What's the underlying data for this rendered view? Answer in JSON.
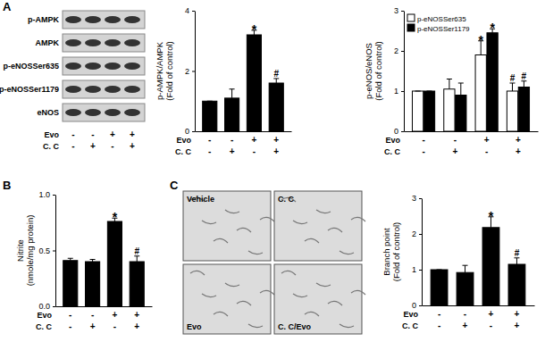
{
  "figure": {
    "panel_labels": [
      "A",
      "B",
      "C"
    ],
    "blot": {
      "labels": [
        "p-AMPK",
        "AMPK",
        "p-eNOSSer635",
        "p-eNOSSer1179",
        "eNOS"
      ],
      "treatments": [
        {
          "label": "Evo",
          "signs": [
            "-",
            "-",
            "+",
            "+"
          ]
        },
        {
          "label": "C. C",
          "signs": [
            "-",
            "+",
            "-",
            "+"
          ]
        }
      ]
    },
    "micrographs": {
      "labels": [
        "Vehicle",
        "C. C",
        "Evo",
        "C. C/Evo"
      ]
    }
  },
  "chart_data": [
    {
      "type": "bar",
      "ylabel": [
        "p-AMPK/AMPK",
        "(Fold of control)"
      ],
      "categories": [
        null,
        null,
        null,
        null
      ],
      "values": [
        1,
        1.1,
        3.2,
        1.6
      ],
      "errors": [
        0,
        0.3,
        0.15,
        0.15
      ],
      "annotations": [
        null,
        null,
        "*",
        "#"
      ],
      "color": "#000000",
      "ylim": [
        0,
        4
      ],
      "yticks": [
        0,
        2,
        4
      ],
      "treatments": [
        {
          "label": "Evo",
          "signs": [
            "-",
            "-",
            "+",
            "+"
          ]
        },
        {
          "label": "C. C",
          "signs": [
            "-",
            "+",
            "-",
            "+"
          ]
        }
      ]
    },
    {
      "type": "bar",
      "ylabel": [
        "p-eNOS/eNOS",
        "(Fold of control)"
      ],
      "categories": [
        null,
        null,
        null,
        null
      ],
      "series": [
        {
          "name": "p-eNOSSer635",
          "color": "#ffffff",
          "values": [
            1,
            1.05,
            1.9,
            1.0
          ],
          "errors": [
            0,
            0.25,
            0.35,
            0.2
          ],
          "annotations": [
            null,
            null,
            "*",
            "#"
          ]
        },
        {
          "name": "p-eNOSSer1179",
          "color": "#000000",
          "values": [
            1,
            0.9,
            2.45,
            1.1
          ],
          "errors": [
            0,
            0.3,
            0.1,
            0.15
          ],
          "annotations": [
            null,
            null,
            "*",
            "#"
          ]
        }
      ],
      "legend": "upper left",
      "ylim": [
        0,
        3
      ],
      "yticks": [
        0,
        1,
        2,
        3
      ],
      "treatments": [
        {
          "label": "Evo",
          "signs": [
            "-",
            "-",
            "+",
            "+"
          ]
        },
        {
          "label": "C. C",
          "signs": [
            "-",
            "+",
            "-",
            "+"
          ]
        }
      ]
    },
    {
      "type": "bar",
      "ylabel": [
        "Nitrite",
        "(nmole/mg protein)"
      ],
      "categories": [
        null,
        null,
        null,
        null
      ],
      "values": [
        0.41,
        0.4,
        0.76,
        0.4
      ],
      "errors": [
        0.02,
        0.02,
        0.03,
        0.05
      ],
      "annotations": [
        null,
        null,
        "*",
        "#"
      ],
      "color": "#000000",
      "ylim": [
        0,
        1.0
      ],
      "yticks": [
        {
          "value": 0,
          "label": "0.0"
        },
        {
          "value": 0.5,
          "label": "0.5"
        },
        {
          "value": 1.0,
          "label": "1.0"
        }
      ],
      "treatments": [
        {
          "label": "Evo",
          "signs": [
            "-",
            "-",
            "+",
            "+"
          ]
        },
        {
          "label": "C. C",
          "signs": [
            "-",
            "+",
            "-",
            "+"
          ]
        }
      ]
    },
    {
      "type": "bar",
      "ylabel": [
        "Branch point",
        "(Fold of control)"
      ],
      "categories": [
        null,
        null,
        null,
        null
      ],
      "values": [
        1,
        0.92,
        2.18,
        1.15
      ],
      "errors": [
        0,
        0.2,
        0.3,
        0.18
      ],
      "annotations": [
        null,
        null,
        "*",
        "#"
      ],
      "color": "#000000",
      "ylim": [
        0,
        3
      ],
      "yticks": [
        0,
        1,
        2,
        3
      ],
      "treatments": [
        {
          "label": "Evo",
          "signs": [
            "-",
            "-",
            "+",
            "+"
          ]
        },
        {
          "label": "C. C",
          "signs": [
            "-",
            "+",
            "-",
            "+"
          ]
        }
      ]
    }
  ]
}
